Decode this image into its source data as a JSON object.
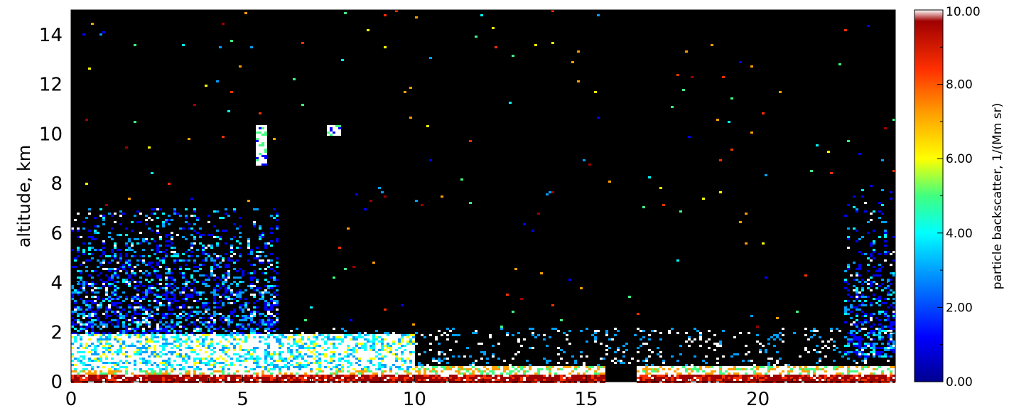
{
  "chart_data": {
    "type": "heatmap",
    "title": "",
    "xlabel": "",
    "ylabel": "altitude, km",
    "xlim": [
      0,
      24
    ],
    "ylim": [
      0,
      15
    ],
    "x_ticks": [
      "0",
      "5",
      "10",
      "15",
      "20"
    ],
    "y_ticks": [
      "0",
      "2",
      "4",
      "6",
      "8",
      "10",
      "12",
      "14"
    ],
    "background_color": "#000000",
    "colorbar": {
      "label": "particle backscatter, 1/(Mm sr)",
      "range": [
        0,
        10
      ],
      "tick_labels": [
        "0.00",
        "2.00",
        "4.00",
        "6.00",
        "8.00",
        "10.00"
      ],
      "colors": [
        "#00008f",
        "#0000ff",
        "#00a0ff",
        "#00ffff",
        "#40ff80",
        "#ffff00",
        "#ffa000",
        "#ff3000",
        "#a00000",
        "#ffffff"
      ]
    },
    "regions": [
      {
        "name": "surface layer",
        "x": [
          0,
          24
        ],
        "y": [
          0,
          0.7
        ],
        "level": 9,
        "note": "saturated near ground except x 15.5-16.4"
      },
      {
        "name": "boundary layer aerosol",
        "x": [
          0,
          10
        ],
        "y": [
          0.5,
          2.0
        ],
        "level": 10
      },
      {
        "name": "scattered aerosol",
        "x": [
          0,
          6
        ],
        "y": [
          2,
          7
        ],
        "level": 3
      },
      {
        "name": "scattered aerosol",
        "x": [
          22.5,
          24
        ],
        "y": [
          1,
          8
        ],
        "level": 3
      },
      {
        "name": "cloud",
        "x": [
          5.3,
          5.7
        ],
        "y": [
          8.8,
          10.4
        ],
        "level": 10
      },
      {
        "name": "cloud",
        "x": [
          7.4,
          7.8
        ],
        "y": [
          10.0,
          10.4
        ],
        "level": 9
      }
    ],
    "gap": {
      "x": [
        15.5,
        16.4
      ],
      "y": [
        0,
        0.8
      ]
    }
  }
}
